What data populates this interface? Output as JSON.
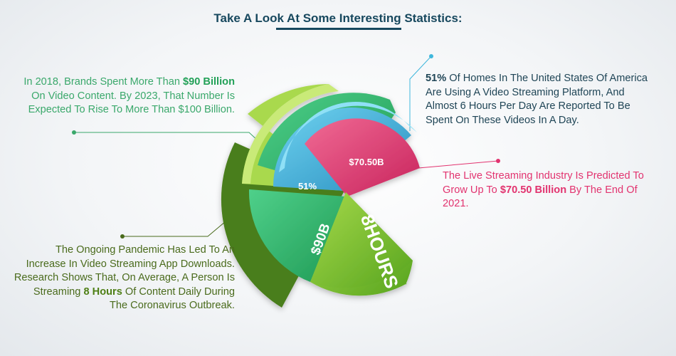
{
  "title": "Take A Look At Some Interesting Statistics:",
  "colors": {
    "title": "#17485e",
    "green": "#2bb46a",
    "lime": "#7ac236",
    "blue": "#3fb7dc",
    "pink": "#e2336f",
    "dark_green": "#4a6b1c"
  },
  "callouts": {
    "brands": {
      "pre": "In 2018, Brands Spent More Than ",
      "bold": "$90 Billion",
      "post": " On Video Content. By 2023, That Number Is Expected To Rise To More Than $100 Billion."
    },
    "homes": {
      "bold": "51%",
      "post": " Of Homes In The United States Of America Are Using A Video Streaming Platform, And Almost 6 Hours Per Day Are Reported To Be Spent On These Videos In A Day."
    },
    "live": {
      "pre": "The Live Streaming Industry Is Predicted To Grow Up To ",
      "bold": "$70.50 Billion",
      "post": " By The End Of 2021."
    },
    "pandemic": {
      "pre": "The Ongoing Pandemic Has Led To An Increase In Video Streaming App Downloads. Research Shows That, On Average, A Person Is Streaming ",
      "bold": "8 Hours",
      "post": " Of Content Daily During The Coronavirus Outbreak."
    }
  },
  "slices": {
    "pink": "$70.50B",
    "blue": "51%",
    "green": "$90B",
    "lime": "8HOURS"
  }
}
